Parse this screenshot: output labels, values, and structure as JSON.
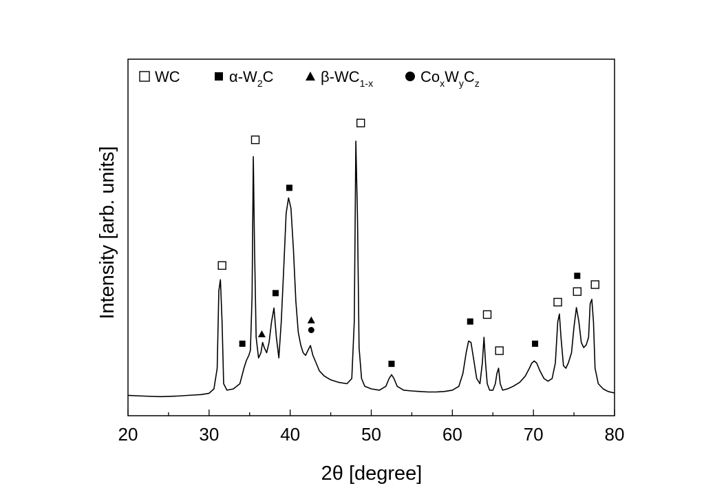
{
  "chart_data": {
    "type": "line",
    "title": "",
    "xlabel": "2θ [degree]",
    "ylabel": "Intensity [arb. units]",
    "xlim": [
      20,
      80
    ],
    "xticks": [
      20,
      30,
      40,
      50,
      60,
      70,
      80
    ],
    "yticks_shown": false,
    "grid": false,
    "legend_position": "top-left inside",
    "series": [
      {
        "x": [
          20,
          22,
          24,
          26,
          28,
          29,
          30,
          30.6,
          31.0,
          31.2,
          31.4,
          31.6,
          31.8,
          32.2,
          33,
          33.8,
          34.3,
          34.6,
          34.9,
          35.1,
          35.3,
          35.45,
          35.6,
          35.8,
          36.1,
          36.4,
          36.6,
          36.8,
          37.1,
          37.4,
          37.7,
          38.0,
          38.3,
          38.6,
          38.9,
          39.2,
          39.5,
          39.8,
          40.1,
          40.4,
          40.7,
          41.0,
          41.3,
          41.6,
          41.9,
          42.2,
          42.5,
          42.8,
          43.2,
          43.6,
          44.2,
          45,
          46,
          47,
          47.6,
          47.9,
          48.1,
          48.3,
          48.5,
          48.8,
          49.2,
          50,
          51,
          51.8,
          52.2,
          52.5,
          52.8,
          53.2,
          54,
          55,
          56,
          57,
          58,
          59,
          60,
          60.8,
          61.3,
          61.7,
          62.0,
          62.3,
          62.6,
          63.0,
          63.4,
          63.7,
          63.9,
          64.1,
          64.3,
          64.6,
          65.0,
          65.3,
          65.5,
          65.7,
          65.9,
          66.2,
          66.8,
          67.5,
          68.3,
          69.0,
          69.5,
          69.8,
          70.1,
          70.4,
          70.8,
          71.3,
          71.8,
          72.3,
          72.7,
          73.0,
          73.2,
          73.4,
          73.7,
          74.0,
          74.3,
          74.7,
          75.0,
          75.3,
          75.6,
          75.9,
          76.2,
          76.5,
          76.8,
          77.0,
          77.2,
          77.4,
          77.6,
          78.0,
          78.6,
          79.2,
          80.0
        ],
        "y": [
          1.5,
          1.2,
          1.0,
          1.2,
          1.6,
          1.8,
          2.3,
          4.0,
          12.0,
          42.0,
          46.3,
          30.0,
          6.0,
          3.5,
          4.0,
          6.0,
          12.0,
          15.0,
          17.0,
          19.0,
          40.0,
          94.0,
          60.0,
          24.0,
          16.0,
          18.0,
          22.0,
          20.0,
          18.0,
          22.0,
          30.0,
          35.3,
          24.0,
          16.0,
          30.0,
          50.0,
          72.0,
          78.0,
          74.0,
          58.0,
          38.0,
          26.0,
          21.0,
          18.0,
          17.0,
          19.0,
          20.8,
          17.0,
          14.0,
          11.0,
          9.0,
          7.5,
          6.5,
          6.0,
          8.0,
          30.0,
          100.0,
          70.0,
          20.0,
          8.0,
          5.0,
          4.0,
          3.5,
          5.0,
          8.0,
          9.5,
          8.0,
          5.0,
          3.5,
          3.2,
          3.0,
          2.8,
          2.8,
          3.0,
          3.5,
          5.0,
          10.0,
          18.0,
          22.5,
          22.0,
          16.0,
          8.0,
          6.0,
          14.0,
          24.0,
          14.0,
          6.0,
          3.5,
          3.5,
          6.0,
          10.0,
          12.0,
          6.0,
          3.5,
          4.0,
          5.0,
          6.5,
          9.0,
          12.0,
          14.0,
          14.8,
          14.0,
          11.0,
          8.0,
          7.0,
          8.0,
          14.0,
          30.0,
          33.0,
          24.0,
          13.0,
          12.0,
          14.0,
          18.0,
          28.0,
          35.5,
          30.0,
          22.0,
          20.0,
          21.0,
          24.0,
          37.0,
          38.7,
          30.0,
          12.0,
          6.0,
          4.0,
          3.0,
          2.4
        ]
      }
    ],
    "annotations": [
      {
        "marker": "open-square",
        "x": 31.6,
        "y": 51.8
      },
      {
        "marker": "filled-square",
        "x": 34.1,
        "y": 21.5
      },
      {
        "marker": "filled-triangle",
        "x": 36.5,
        "y": 25.2
      },
      {
        "marker": "filled-square",
        "x": 38.2,
        "y": 41.1
      },
      {
        "marker": "open-square",
        "x": 35.7,
        "y": 100.5
      },
      {
        "marker": "filled-square",
        "x": 39.9,
        "y": 81.9
      },
      {
        "marker": "filled-triangle",
        "x": 42.6,
        "y": 30.6
      },
      {
        "marker": "filled-circle",
        "x": 42.6,
        "y": 26.8
      },
      {
        "marker": "open-square",
        "x": 48.7,
        "y": 107.0
      },
      {
        "marker": "filled-square",
        "x": 52.5,
        "y": 13.7
      },
      {
        "marker": "filled-square",
        "x": 62.2,
        "y": 30.1
      },
      {
        "marker": "open-square",
        "x": 64.3,
        "y": 32.8
      },
      {
        "marker": "open-square",
        "x": 65.8,
        "y": 18.8
      },
      {
        "marker": "filled-square",
        "x": 70.2,
        "y": 21.5
      },
      {
        "marker": "open-square",
        "x": 73.0,
        "y": 37.6
      },
      {
        "marker": "filled-square",
        "x": 75.4,
        "y": 47.8
      },
      {
        "marker": "open-square",
        "x": 75.4,
        "y": 41.7
      },
      {
        "marker": "open-square",
        "x": 77.6,
        "y": 44.4
      }
    ],
    "legend": [
      {
        "marker": "open-square",
        "label": "WC",
        "sub": ""
      },
      {
        "marker": "filled-square",
        "label": "α-W2C",
        "parts": [
          "α-W",
          "2",
          "C"
        ]
      },
      {
        "marker": "filled-triangle",
        "label": "β-WC1-x",
        "parts": [
          "β-WC",
          "1-x",
          ""
        ]
      },
      {
        "marker": "filled-circle",
        "label": "CoxWyCz",
        "parts": [
          "Co",
          "x",
          "W",
          "y",
          "C",
          "z"
        ]
      }
    ],
    "colors": {
      "line": "#000000",
      "axis": "#000000"
    }
  }
}
